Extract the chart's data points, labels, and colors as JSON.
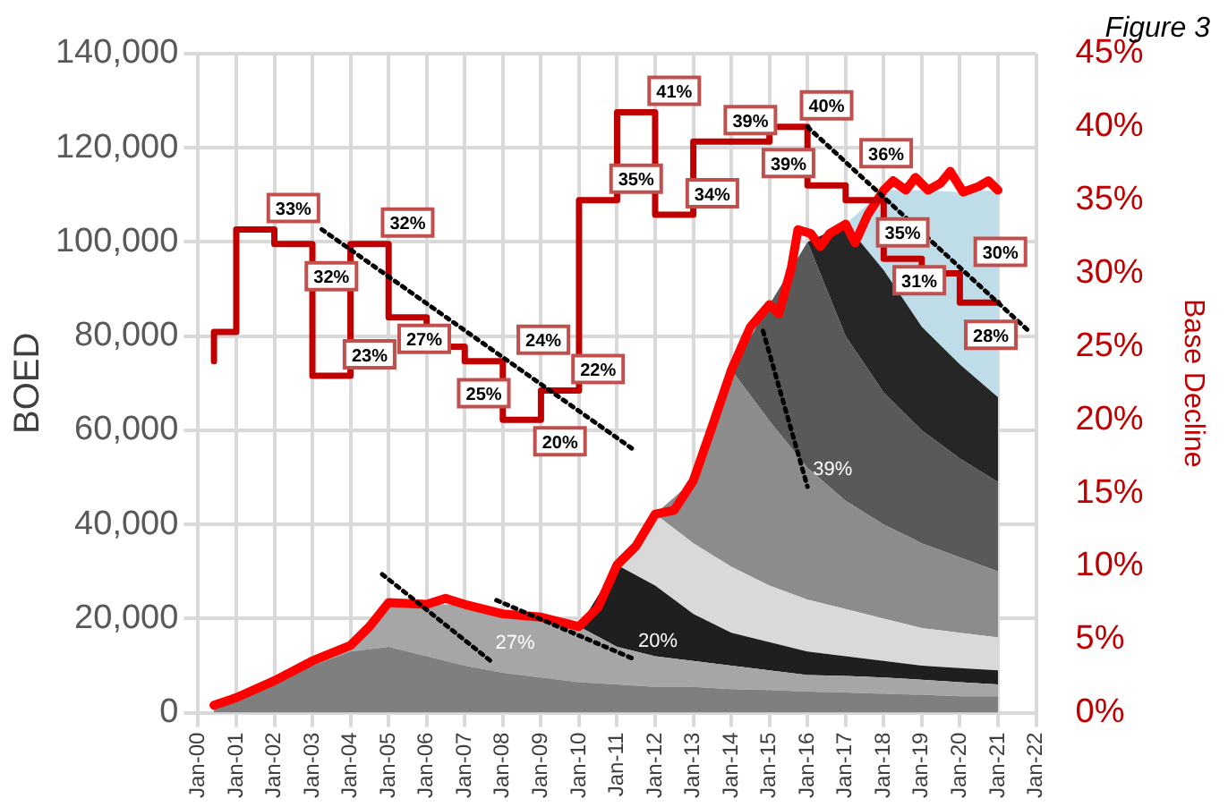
{
  "chart_data": {
    "type": "area",
    "stacked": true,
    "ylabel": "BOED",
    "y2label": "Base Decline",
    "grid": true,
    "legend": false,
    "annotations": [
      "Figure 3",
      {
        "text": "27%",
        "x": "2007-09",
        "y": 11100
      },
      {
        "text": "20%",
        "x": "2011-06",
        "y": 11500
      },
      {
        "text": "39%",
        "x": "2016-01",
        "y": 48000
      }
    ],
    "xlim": [
      "2000-01",
      "2022-01"
    ],
    "xticks": [
      {
        "value": "2000-01",
        "label": "Jan-00"
      },
      {
        "value": "2001-01",
        "label": "Jan-01"
      },
      {
        "value": "2002-01",
        "label": "Jan-02"
      },
      {
        "value": "2003-01",
        "label": "Jan-03"
      },
      {
        "value": "2004-01",
        "label": "Jan-04"
      },
      {
        "value": "2005-01",
        "label": "Jan-05"
      },
      {
        "value": "2006-01",
        "label": "Jan-06"
      },
      {
        "value": "2007-01",
        "label": "Jan-07"
      },
      {
        "value": "2008-01",
        "label": "Jan-08"
      },
      {
        "value": "2009-01",
        "label": "Jan-09"
      },
      {
        "value": "2010-01",
        "label": "Jan-10"
      },
      {
        "value": "2011-01",
        "label": "Jan-11"
      },
      {
        "value": "2012-01",
        "label": "Jan-12"
      },
      {
        "value": "2013-01",
        "label": "Jan-13"
      },
      {
        "value": "2014-01",
        "label": "Jan-14"
      },
      {
        "value": "2015-01",
        "label": "Jan-15"
      },
      {
        "value": "2016-01",
        "label": "Jan-16"
      },
      {
        "value": "2017-01",
        "label": "Jan-17"
      },
      {
        "value": "2018-01",
        "label": "Jan-18"
      },
      {
        "value": "2019-01",
        "label": "Jan-19"
      },
      {
        "value": "2020-01",
        "label": "Jan-20"
      },
      {
        "value": "2021-01",
        "label": "Jan-21"
      },
      {
        "value": "2022-01",
        "label": "Jan-22"
      }
    ],
    "ylim": [
      0,
      140000
    ],
    "yticks": [
      0,
      {
        "value": 20000,
        "label": "20,000"
      },
      {
        "value": 40000,
        "label": "40,000"
      },
      {
        "value": 60000,
        "label": "60,000"
      },
      {
        "value": 80000,
        "label": "80,000"
      },
      {
        "value": 100000,
        "label": "100,000"
      },
      {
        "value": 120000,
        "label": "120,000"
      },
      {
        "value": 140000,
        "label": "140,000"
      }
    ],
    "y2lim": [
      0,
      45
    ],
    "y2ticks": [
      {
        "value": 0,
        "label": "0%"
      },
      {
        "value": 5,
        "label": "5%"
      },
      {
        "value": 10,
        "label": "10%"
      },
      {
        "value": 15,
        "label": "15%"
      },
      {
        "value": 20,
        "label": "20%"
      },
      {
        "value": 25,
        "label": "25%"
      },
      {
        "value": 30,
        "label": "30%"
      },
      {
        "value": 35,
        "label": "35%"
      },
      {
        "value": 40,
        "label": "40%"
      },
      {
        "value": 45,
        "label": "45%"
      }
    ],
    "series": [
      {
        "color": "#7f7f7f",
        "x": [
          "2000-06",
          "2001-01",
          "2002-01",
          "2003-01",
          "2004-01",
          "2005-01",
          "2006-01",
          "2007-01",
          "2008-01",
          "2009-01",
          "2010-01",
          "2011-01",
          "2012-01",
          "2013-01",
          "2014-01",
          "2015-01",
          "2016-01",
          "2017-01",
          "2018-01",
          "2019-01",
          "2020-01",
          "2021-01"
        ],
        "values": [
          1600,
          3200,
          6800,
          10000,
          13000,
          14000,
          12000,
          10000,
          8500,
          7500,
          6500,
          6000,
          5500,
          5500,
          5000,
          4800,
          4500,
          4300,
          4000,
          3800,
          3500,
          3500
        ]
      },
      {
        "color": "#a6a6a6",
        "x": [
          "2000-06",
          "2001-01",
          "2002-01",
          "2003-01",
          "2004-01",
          "2005-01",
          "2006-01",
          "2007-01",
          "2008-01",
          "2009-01",
          "2010-01",
          "2011-01",
          "2012-01",
          "2013-01",
          "2014-01",
          "2015-01",
          "2016-01",
          "2017-01",
          "2018-01",
          "2019-01",
          "2020-01",
          "2021-01"
        ],
        "values": [
          0,
          0,
          0,
          1000,
          1300,
          9400,
          11000,
          13000,
          12500,
          12800,
          11800,
          8000,
          6500,
          5500,
          5000,
          4200,
          3500,
          3500,
          3500,
          3200,
          3000,
          2500
        ]
      },
      {
        "color": "#1f1f1f",
        "x": [
          "2000-06",
          "2001-01",
          "2002-01",
          "2003-01",
          "2004-01",
          "2005-01",
          "2006-01",
          "2007-01",
          "2008-01",
          "2009-01",
          "2010-01",
          "2011-01",
          "2012-01",
          "2013-01",
          "2014-01",
          "2015-01",
          "2016-01",
          "2017-01",
          "2018-01",
          "2019-01",
          "2020-01",
          "2021-01"
        ],
        "values": [
          0,
          0,
          0,
          0,
          0,
          0,
          0,
          0,
          0,
          0,
          0,
          17400,
          15000,
          10000,
          7000,
          6000,
          5000,
          4200,
          3500,
          3000,
          3000,
          3000
        ]
      },
      {
        "color": "#d9d9d9",
        "x": [
          "2000-06",
          "2001-01",
          "2002-01",
          "2003-01",
          "2004-01",
          "2005-01",
          "2006-01",
          "2007-01",
          "2008-01",
          "2009-01",
          "2010-01",
          "2011-01",
          "2012-01",
          "2013-01",
          "2014-01",
          "2015-01",
          "2016-01",
          "2017-01",
          "2018-01",
          "2019-01",
          "2020-01",
          "2021-01"
        ],
        "values": [
          0,
          0,
          0,
          0,
          0,
          0,
          0,
          0,
          0,
          0,
          0,
          0,
          15200,
          15000,
          14000,
          12000,
          11000,
          10000,
          9000,
          8000,
          7500,
          7000
        ]
      },
      {
        "color": "#8c8c8c",
        "x": [
          "2000-06",
          "2001-01",
          "2002-01",
          "2003-01",
          "2004-01",
          "2005-01",
          "2006-01",
          "2007-01",
          "2008-01",
          "2009-01",
          "2010-01",
          "2011-01",
          "2012-01",
          "2013-01",
          "2014-01",
          "2015-01",
          "2016-01",
          "2017-01",
          "2018-01",
          "2019-01",
          "2020-01",
          "2021-01"
        ],
        "values": [
          0,
          0,
          0,
          0,
          0,
          0,
          0,
          0,
          0,
          0,
          0,
          0,
          0,
          13300,
          41800,
          35000,
          28000,
          23000,
          20000,
          18000,
          16000,
          14000
        ]
      },
      {
        "color": "#595959",
        "x": [
          "2000-06",
          "2001-01",
          "2002-01",
          "2003-01",
          "2004-01",
          "2005-01",
          "2006-01",
          "2007-01",
          "2008-01",
          "2009-01",
          "2010-01",
          "2011-01",
          "2012-01",
          "2013-01",
          "2014-01",
          "2015-01",
          "2016-01",
          "2017-01",
          "2018-01",
          "2019-01",
          "2020-01",
          "2021-01"
        ],
        "values": [
          0,
          0,
          0,
          0,
          0,
          0,
          0,
          0,
          0,
          0,
          0,
          0,
          0,
          0,
          0,
          24700,
          48000,
          35000,
          28000,
          24000,
          21000,
          19000
        ]
      },
      {
        "color": "#262626",
        "x": [
          "2000-06",
          "2001-01",
          "2002-01",
          "2003-01",
          "2004-01",
          "2005-01",
          "2006-01",
          "2007-01",
          "2008-01",
          "2009-01",
          "2010-01",
          "2011-01",
          "2012-01",
          "2013-01",
          "2014-01",
          "2015-01",
          "2016-01",
          "2017-01",
          "2018-01",
          "2019-01",
          "2020-01",
          "2021-01"
        ],
        "values": [
          0,
          0,
          0,
          0,
          0,
          0,
          0,
          0,
          0,
          0,
          0,
          0,
          0,
          0,
          0,
          0,
          0,
          23800,
          26000,
          22000,
          20000,
          18000
        ]
      },
      {
        "color": "#bfdde8",
        "x": [
          "2000-06",
          "2001-01",
          "2002-01",
          "2003-01",
          "2004-01",
          "2005-01",
          "2006-01",
          "2007-01",
          "2008-01",
          "2009-01",
          "2010-01",
          "2011-01",
          "2012-01",
          "2013-01",
          "2014-01",
          "2015-01",
          "2016-01",
          "2017-01",
          "2018-01",
          "2019-01",
          "2020-01",
          "2021-01"
        ],
        "values": [
          0,
          0,
          0,
          0,
          0,
          0,
          0,
          0,
          0,
          0,
          0,
          0,
          0,
          0,
          0,
          0,
          0,
          0,
          17000,
          29000,
          36600,
          44000
        ]
      },
      {
        "type": "line",
        "color": "#ff0000",
        "x": [
          "2000-06",
          "2001-01",
          "2002-01",
          "2003-01",
          "2004-01",
          "2004-07",
          "2005-01",
          "2006-01",
          "2006-07",
          "2007-01",
          "2008-01",
          "2009-01",
          "2010-01",
          "2010-07",
          "2011-01",
          "2011-07",
          "2012-01",
          "2012-07",
          "2013-01",
          "2013-07",
          "2014-01",
          "2014-07",
          "2015-01",
          "2015-04",
          "2015-08",
          "2015-10",
          "2016-02",
          "2016-05",
          "2016-08",
          "2017-01",
          "2017-04",
          "2017-08",
          "2018-01",
          "2018-04",
          "2018-08",
          "2018-11",
          "2019-03",
          "2019-07",
          "2019-10",
          "2020-02",
          "2020-07",
          "2020-10",
          "2021-01"
        ],
        "values": [
          1600,
          3200,
          6800,
          11000,
          14300,
          18300,
          23400,
          23000,
          24300,
          23000,
          21000,
          20300,
          18300,
          22300,
          31400,
          35400,
          42200,
          43000,
          49300,
          60800,
          72800,
          81900,
          86700,
          84700,
          94700,
          102600,
          101800,
          99000,
          101800,
          103800,
          99800,
          105800,
          111000,
          113000,
          111000,
          113700,
          111000,
          112500,
          115000,
          110600,
          111800,
          113000,
          111000
        ]
      },
      {
        "type": "step",
        "axis": "y2",
        "color": "#c00000",
        "x": [
          "2000-06",
          "2001-01",
          "2002-01",
          "2003-01",
          "2004-01",
          "2005-01",
          "2006-01",
          "2007-01",
          "2008-01",
          "2009-01",
          "2010-01",
          "2011-01",
          "2012-01",
          "2013-01",
          "2014-01",
          "2015-01",
          "2016-01",
          "2017-01",
          "2018-01",
          "2019-01",
          "2020-01",
          "2021-01"
        ],
        "values": [
          24,
          26,
          33,
          32,
          23,
          32,
          27,
          25,
          24,
          20,
          22,
          35,
          41,
          34,
          39,
          39,
          40,
          36,
          35,
          31,
          30,
          28
        ],
        "value_labels": [
          null,
          null,
          "33%",
          "32%",
          "23%",
          "32%",
          "27%",
          "25%",
          "24%",
          "20%",
          "22%",
          "35%",
          "41%",
          "34%",
          "39%",
          "39%",
          "40%",
          "36%",
          "35%",
          "31%",
          "30%",
          "28%"
        ]
      },
      {
        "type": "line",
        "axis": "y2",
        "line_style": "dotted",
        "color": "#000000",
        "x": [
          "2003-04",
          "2011-06"
        ],
        "values": [
          33,
          18
        ]
      },
      {
        "type": "line",
        "axis": "y2",
        "line_style": "dotted",
        "color": "#000000",
        "x": [
          "2016-01",
          "2021-11"
        ],
        "values": [
          40,
          26
        ]
      },
      {
        "type": "line",
        "line_style": "dotted",
        "color": "#000000",
        "x": [
          "2004-11",
          "2007-09"
        ],
        "values": [
          29400,
          11100
        ]
      },
      {
        "type": "line",
        "line_style": "dotted",
        "color": "#000000",
        "x": [
          "2007-11",
          "2011-06"
        ],
        "values": [
          23900,
          11500
        ]
      },
      {
        "type": "line",
        "line_style": "dotted",
        "color": "#000000",
        "x": [
          "2014-11",
          "2016-01"
        ],
        "values": [
          81100,
          48000
        ]
      }
    ]
  }
}
